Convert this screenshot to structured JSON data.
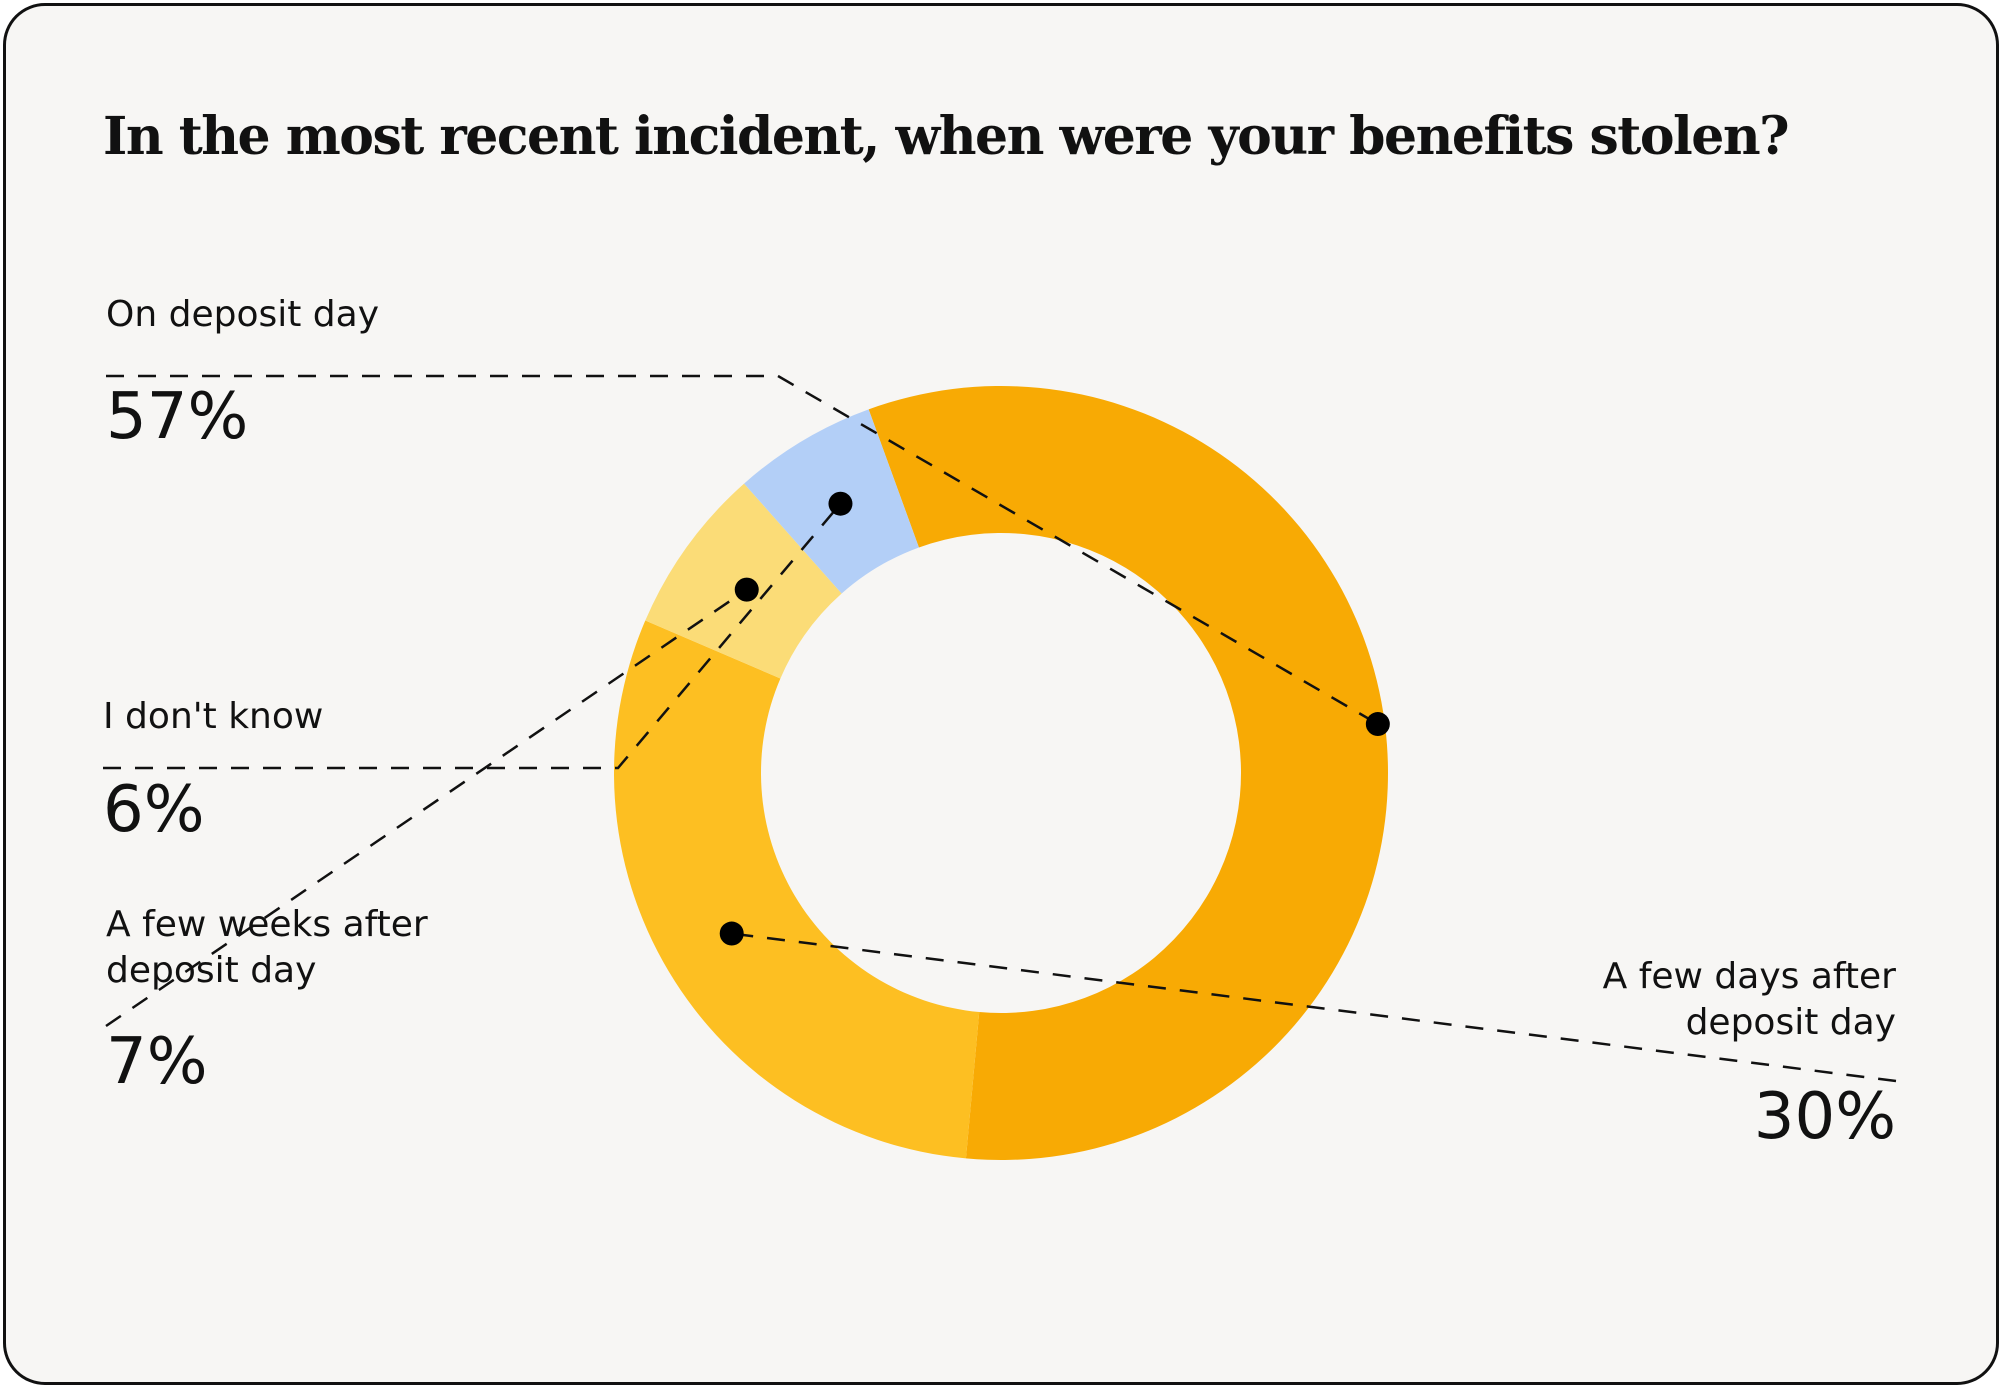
{
  "chart_data": {
    "type": "pie",
    "title": "In the most recent incident, when were your benefits stolen?",
    "donut": true,
    "slices": [
      {
        "label": "On deposit day",
        "value": 57,
        "value_label": "57%",
        "color": "#f8aa04"
      },
      {
        "label": "A few days after deposit day",
        "value": 30,
        "value_label": "30%",
        "color": "#fdbf22"
      },
      {
        "label": "A few weeks after deposit day",
        "value": 7,
        "value_label": "7%",
        "color": "#fbdc77"
      },
      {
        "label": "I don't know",
        "value": 6,
        "value_label": "6%",
        "color": "#b3cff7"
      }
    ]
  },
  "colors": {
    "background": "#f7f6f4",
    "text": "#111111",
    "leader_line": "#111111"
  }
}
